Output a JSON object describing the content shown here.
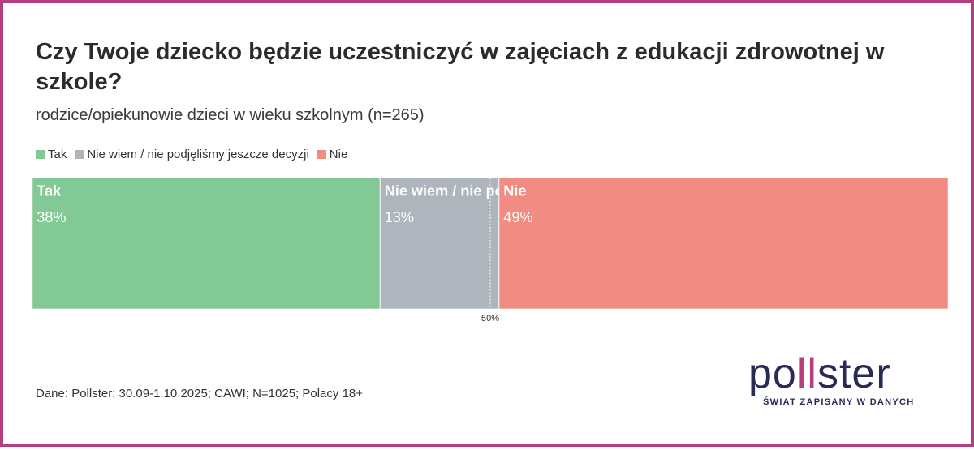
{
  "title": "Czy Twoje dziecko będzie uczestniczyć w zajęciach z edukacji zdrowotnej w szkole?",
  "subtitle": "rodzice/opiekunowie dzieci w wieku szkolnym (n=265)",
  "legend": [
    {
      "label": "Tak",
      "color": "#82c995"
    },
    {
      "label": "Nie wiem / nie podjęliśmy jeszcze decyzji",
      "color": "#afb5bd"
    },
    {
      "label": "Nie",
      "color": "#f28b82"
    }
  ],
  "chart_data": {
    "type": "bar",
    "orientation": "horizontal-stacked-100",
    "series": [
      {
        "name": "Tak",
        "bar_label": "Tak",
        "value": 38,
        "display": "38%",
        "color": "#82c995"
      },
      {
        "name": "Nie wiem / nie podjęliśmy jeszcze decyzji",
        "bar_label": "Nie wiem / nie podjęliśmy jeszcze decyzji",
        "value": 13,
        "display": "13%",
        "color": "#afb5bd"
      },
      {
        "name": "Nie",
        "bar_label": "Nie",
        "value": 49,
        "display": "49%",
        "color": "#f28b82"
      }
    ],
    "reference_line": {
      "value": 50,
      "label": "50%"
    },
    "xlim": [
      0,
      100
    ]
  },
  "footer": "Dane: Pollster; 30.09-1.10.2025; CAWI; N=1025; Polacy 18+",
  "logo": {
    "word_start": "po",
    "word_accent": "ll",
    "word_end": "ster",
    "tagline": "ŚWIAT ZAPISANY W DANYCH"
  }
}
